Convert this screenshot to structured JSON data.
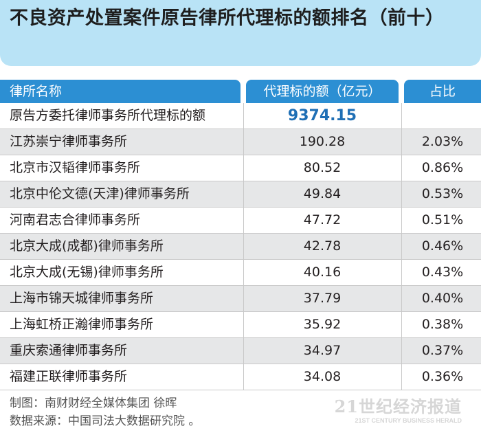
{
  "title": "不良资产处置案件原告律所代理标的额排名（前十）",
  "header": {
    "name": "律所名称",
    "value": "代理标的额（亿元）",
    "share": "占比"
  },
  "rows": [
    {
      "name": "原告方委托律师事务所代理标的额",
      "value": "9374.15",
      "share": ""
    },
    {
      "name": "江苏崇宁律师事务所",
      "value": "190.28",
      "share": "2.03%"
    },
    {
      "name": "北京市汉韬律师事务所",
      "value": "80.52",
      "share": "0.86%"
    },
    {
      "name": "北京中伦文德(天津)律师事务所",
      "value": "49.84",
      "share": "0.53%"
    },
    {
      "name": "河南君志合律师事务所",
      "value": "47.72",
      "share": "0.51%"
    },
    {
      "name": "北京大成(成都)律师事务所",
      "value": "42.78",
      "share": "0.46%"
    },
    {
      "name": "北京大成(无锡)律师事务所",
      "value": "40.16",
      "share": "0.43%"
    },
    {
      "name": "上海市锦天城律师事务所",
      "value": "37.79",
      "share": "0.40%"
    },
    {
      "name": "上海虹桥正瀚律师事务所",
      "value": "35.92",
      "share": "0.38%"
    },
    {
      "name": "重庆索通律师事务所",
      "value": "34.97",
      "share": "0.37%"
    },
    {
      "name": "福建正联律师事务所",
      "value": "34.08",
      "share": "0.36%"
    }
  ],
  "footer": {
    "credit": "制图：南财财经全媒体集团 徐晖",
    "source": "数据来源：中国司法大数据研究院 。"
  },
  "logo": {
    "main": "21世纪经济报道",
    "sub": "21ST CENTURY BUSINESS HERALD"
  },
  "colors": {
    "title_bg": "#b9e3f6",
    "header_bg": "#2c8fd3",
    "alt_row": "#e6e7e8",
    "highlight_value": "#1f6fb5"
  }
}
